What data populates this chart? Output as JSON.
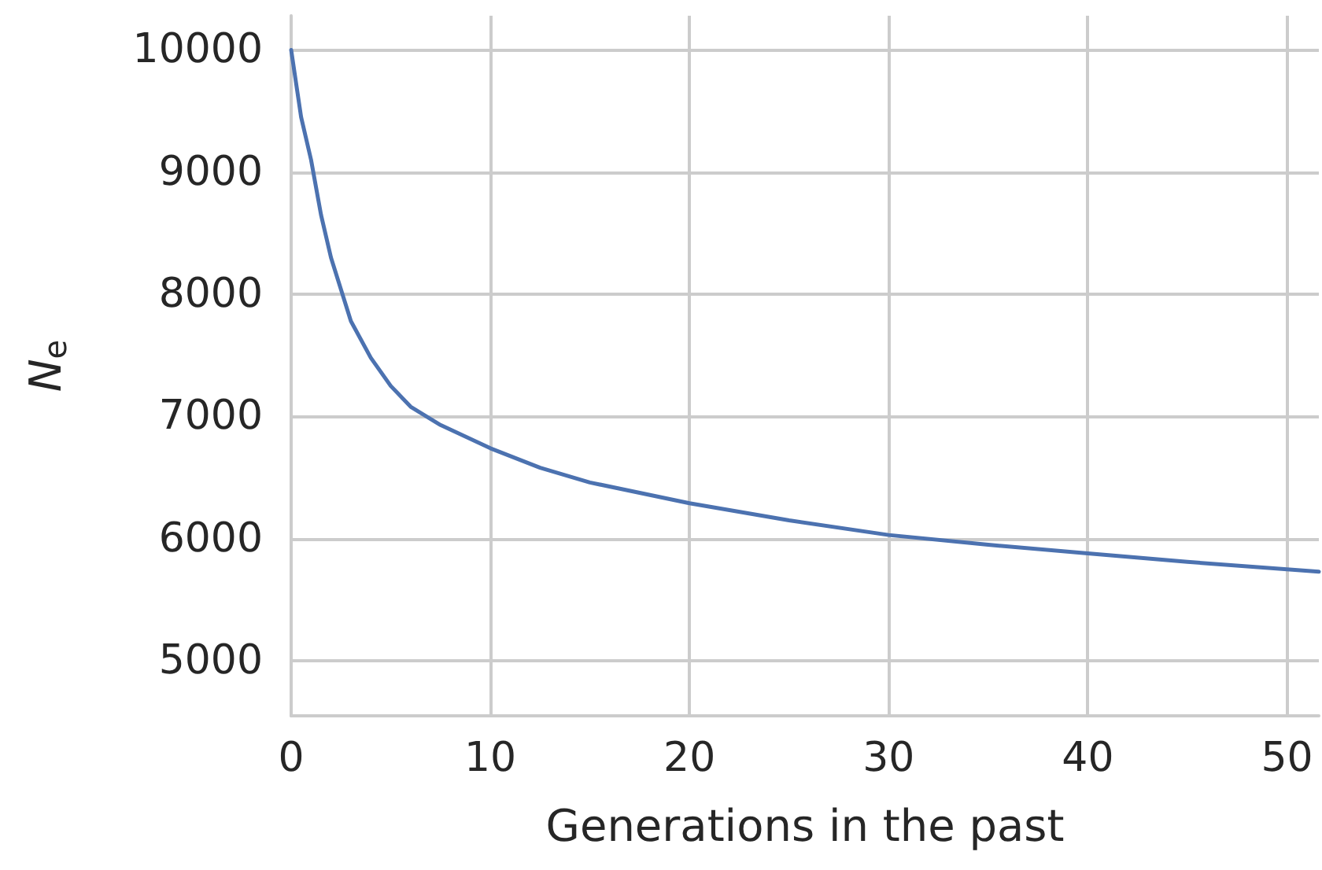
{
  "chart_data": {
    "type": "line",
    "xlabel": "Generations in the past",
    "ylabel": "N$_{e}$",
    "x": [
      0,
      0.5,
      1,
      1.5,
      2,
      3,
      4,
      5,
      6,
      7.5,
      10,
      12.5,
      15,
      20,
      25,
      30,
      35,
      40,
      45,
      51.6
    ],
    "series": [
      {
        "color": "#4c72b0",
        "values": [
          10000,
          9450,
          9100,
          8650,
          8300,
          7780,
          7480,
          7250,
          7080,
          6930,
          6740,
          6580,
          6460,
          6290,
          6150,
          6030,
          5950,
          5880,
          5810,
          5730
        ]
      }
    ],
    "xlim": [
      0,
      51.6
    ],
    "ylim": [
      4550,
      10280
    ],
    "xticks": [
      0,
      10,
      20,
      30,
      40,
      50
    ],
    "yticks": [
      5000,
      6000,
      7000,
      8000,
      9000,
      10000
    ],
    "grid": true,
    "marker": "none",
    "line_style": "solid"
  }
}
